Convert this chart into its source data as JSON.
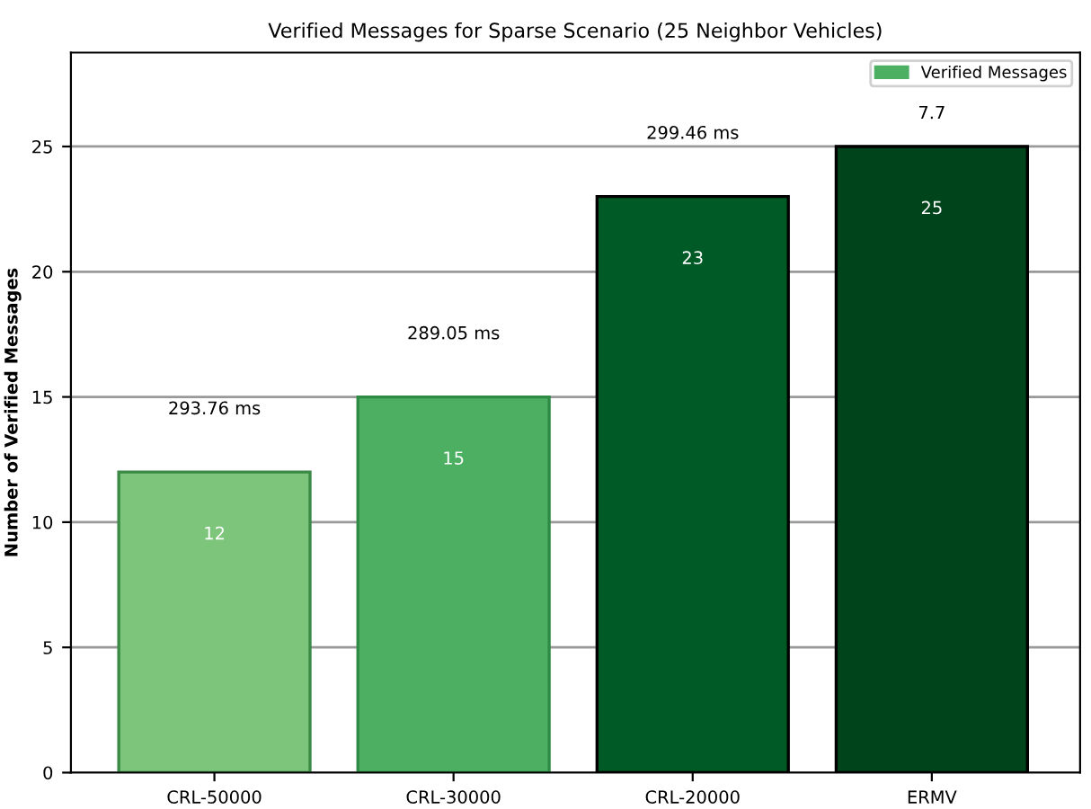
{
  "chart_data": {
    "type": "bar",
    "title": "Verified Messages for Sparse Scenario (25 Neighbor Vehicles)",
    "ylabel": "Number of Verified Messages",
    "categories": [
      "CRL-50000",
      "CRL-30000",
      "CRL-20000",
      "ERMV"
    ],
    "series": [
      {
        "name": "Verified Messages",
        "color": "#4caf62",
        "colors": [
          "#7dc57b",
          "#4caf62",
          "#005a25",
          "#00441b"
        ],
        "values": [
          12,
          15,
          23,
          25
        ]
      }
    ],
    "data_labels": true,
    "annotations": [
      "293.76 ms",
      "289.05 ms",
      "299.46 ms",
      "7.7"
    ],
    "ylim": [
      0,
      28.75
    ],
    "yticks": [
      0,
      5,
      10,
      15,
      20,
      25
    ],
    "grid": "y",
    "legend": "top right"
  }
}
